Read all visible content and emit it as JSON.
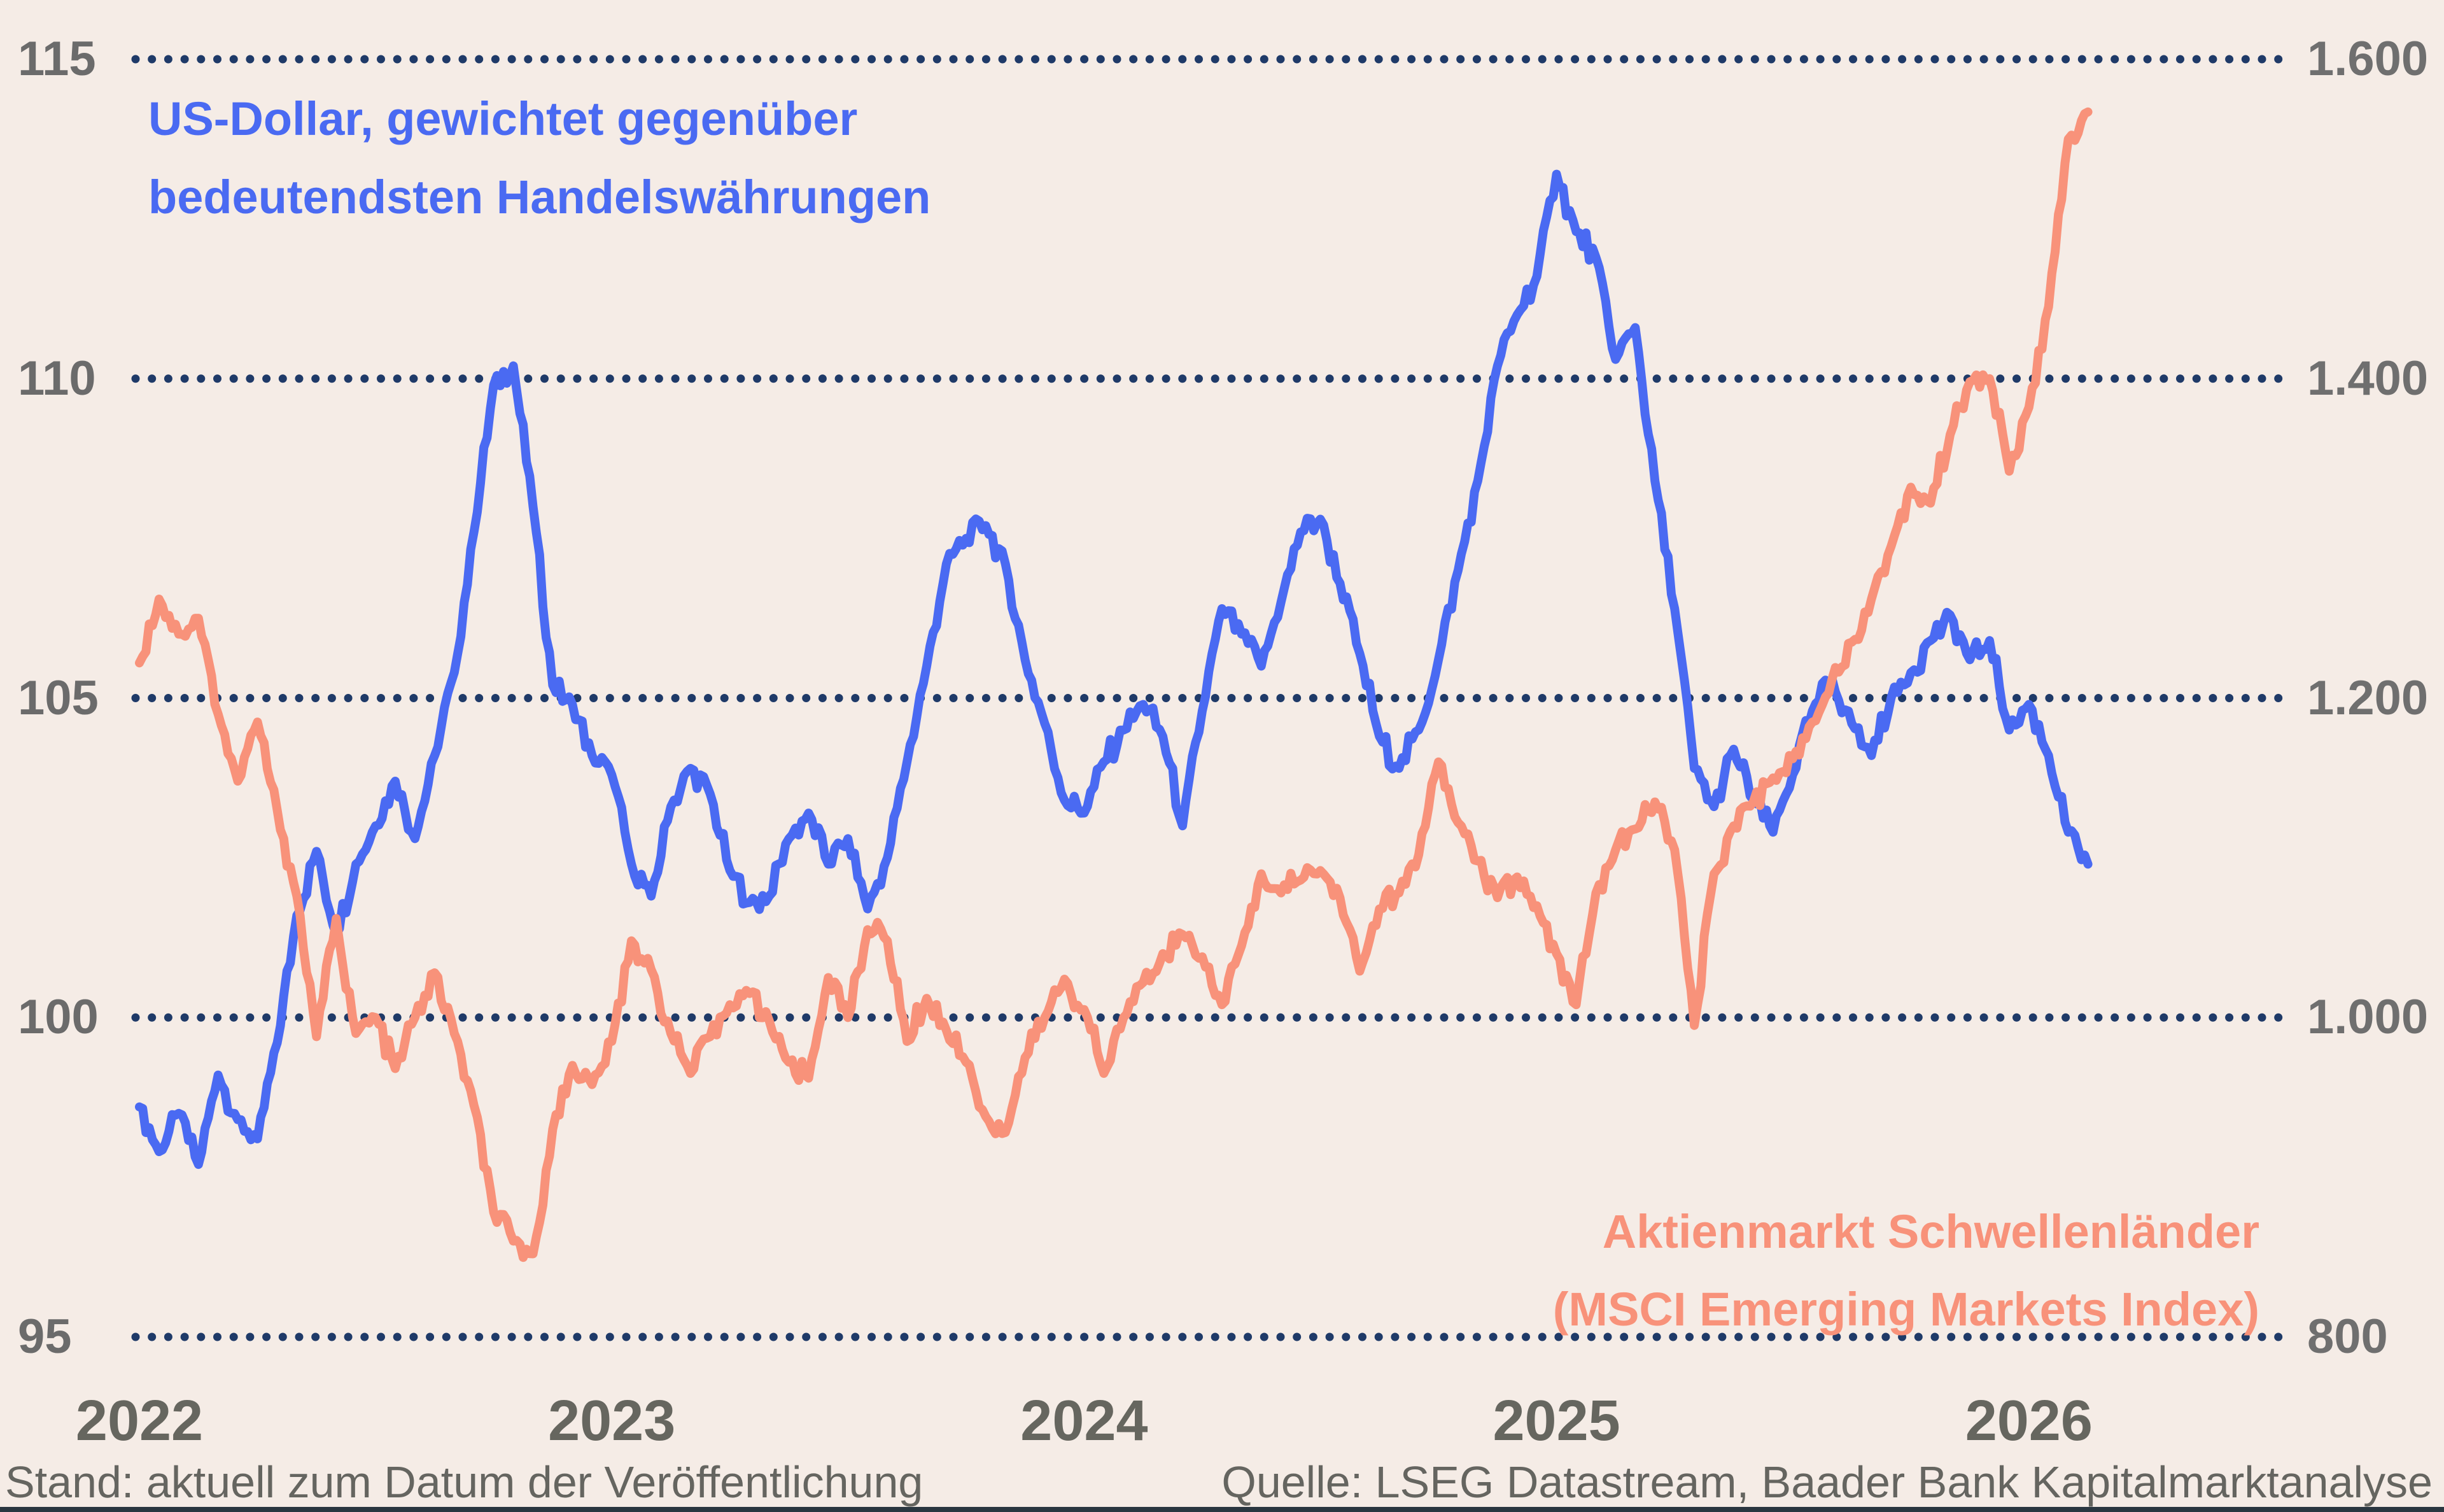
{
  "colors": {
    "background": "#f5ece6",
    "usd_line": "#4a6af2",
    "em_line": "#f8927a",
    "grid_dots": "#1f3a68",
    "tick_text": "#6b6b6b",
    "year_text": "#66665f",
    "footer_text": "#656560",
    "bottom_rule": "#2a3640"
  },
  "legend_usd": {
    "line1": "US-Dollar, gewichtet gegenüber",
    "line2": "bedeutendsten Handelswährungen"
  },
  "legend_em": {
    "line1": "Aktienmarkt Schwellenländer",
    "line2": "(MSCI Emerging Markets Index)"
  },
  "footer": {
    "left": "Stand: aktuell zum Datum der Veröffentlichung",
    "right": "Quelle: LSEG Datastream, Baader Bank Kapitalmarktanalyse"
  },
  "axis_left": {
    "ticks": [
      {
        "label": "115",
        "value": 115
      },
      {
        "label": "110",
        "value": 110
      },
      {
        "label": "105",
        "value": 105
      },
      {
        "label": "100",
        "value": 100
      },
      {
        "label": "95",
        "value": 95
      }
    ]
  },
  "axis_right": {
    "ticks": [
      {
        "label": "1.600",
        "value": 1600
      },
      {
        "label": "1.400",
        "value": 1400
      },
      {
        "label": "1.200",
        "value": 1200
      },
      {
        "label": "1.000",
        "value": 1000
      },
      {
        "label": "800",
        "value": 800
      }
    ]
  },
  "years": [
    {
      "label": "2022",
      "month": 0
    },
    {
      "label": "2023",
      "month": 12
    },
    {
      "label": "2024",
      "month": 24
    },
    {
      "label": "2025",
      "month": 36
    },
    {
      "label": "2026",
      "month": 48
    }
  ],
  "chart_data": {
    "type": "line",
    "x_unit": "months_since_2022_01_01",
    "x_start": 0,
    "x_interval": 0.5,
    "grid": "dotted-horizontal",
    "legend_position": "inline-annotations",
    "axes": {
      "left": {
        "min": 95,
        "max": 115,
        "label": "US-Dollar handelsgewichtet"
      },
      "right": {
        "min": 800,
        "max": 1600,
        "label": "MSCI Emerging Markets Index"
      }
    },
    "series": [
      {
        "name": "US-Dollar, gewichtet gegenüber bedeutendsten Handelswährungen",
        "axis": "left",
        "color": "#4a6af2",
        "values": [
          98.6,
          97.9,
          98.5,
          97.7,
          99.1,
          98.4,
          98.1,
          99.6,
          101.6,
          102.6,
          101.3,
          102.4,
          103.0,
          103.7,
          102.8,
          104.1,
          105.4,
          107.6,
          109.9,
          110.2,
          108.0,
          105.2,
          104.9,
          104.1,
          103.8,
          102.4,
          101.9,
          103.3,
          103.9,
          103.5,
          102.3,
          101.8,
          101.9,
          102.8,
          103.2,
          102.4,
          102.8,
          101.7,
          102.5,
          104.0,
          105.5,
          107.1,
          107.5,
          107.7,
          107.1,
          105.6,
          104.6,
          103.4,
          103.2,
          104.0,
          104.5,
          104.9,
          104.4,
          103.0,
          104.8,
          106.4,
          106.0,
          105.5,
          106.5,
          107.6,
          107.8,
          106.8,
          105.7,
          104.4,
          103.9,
          104.5,
          105.6,
          107.0,
          108.4,
          110.2,
          111.0,
          111.6,
          113.2,
          112.3,
          111.9,
          110.3,
          110.8,
          108.4,
          106.4,
          103.9,
          103.3,
          104.2,
          103.4,
          102.9,
          103.8,
          104.8,
          105.3,
          104.6,
          104.1,
          105.0,
          105.4,
          105.9,
          106.3,
          105.6,
          105.9,
          104.5,
          104.9,
          104.1,
          102.9,
          102.4
        ]
      },
      {
        "name": "Aktienmarkt Schwellenländer (MSCI Emerging Markets Index)",
        "axis": "right",
        "color": "#f8927a",
        "values": [
          1222,
          1262,
          1240,
          1250,
          1190,
          1148,
          1185,
          1130,
          1076,
          988,
          1062,
          990,
          1000,
          968,
          1000,
          1028,
          990,
          945,
          878,
          860,
          852,
          930,
          970,
          958,
          985,
          1048,
          1030,
          990,
          965,
          988,
          1008,
          1015,
          998,
          972,
          962,
          1025,
          1000,
          1055,
          1048,
          985,
          1012,
          992,
          972,
          938,
          928,
          975,
          1000,
          1024,
          1005,
          965,
          1000,
          1022,
          1040,
          1052,
          1038,
          1008,
          1045,
          1090,
          1078,
          1086,
          1092,
          1075,
          1029,
          1068,
          1078,
          1102,
          1160,
          1122,
          1098,
          1075,
          1088,
          1070,
          1040,
          1008,
          1078,
          1105,
          1118,
          1135,
          1105,
          995,
          1090,
          1120,
          1135,
          1150,
          1162,
          1185,
          1212,
          1235,
          1262,
          1295,
          1332,
          1322,
          1365,
          1398,
          1400,
          1342,
          1382,
          1445,
          1550,
          1567
        ]
      }
    ],
    "style": {
      "stroke_width": 14,
      "dot_diameter": 13,
      "dot_pitch": 25.7,
      "jitter_left_units": 0.22,
      "jitter_right_units": 8.5
    }
  }
}
